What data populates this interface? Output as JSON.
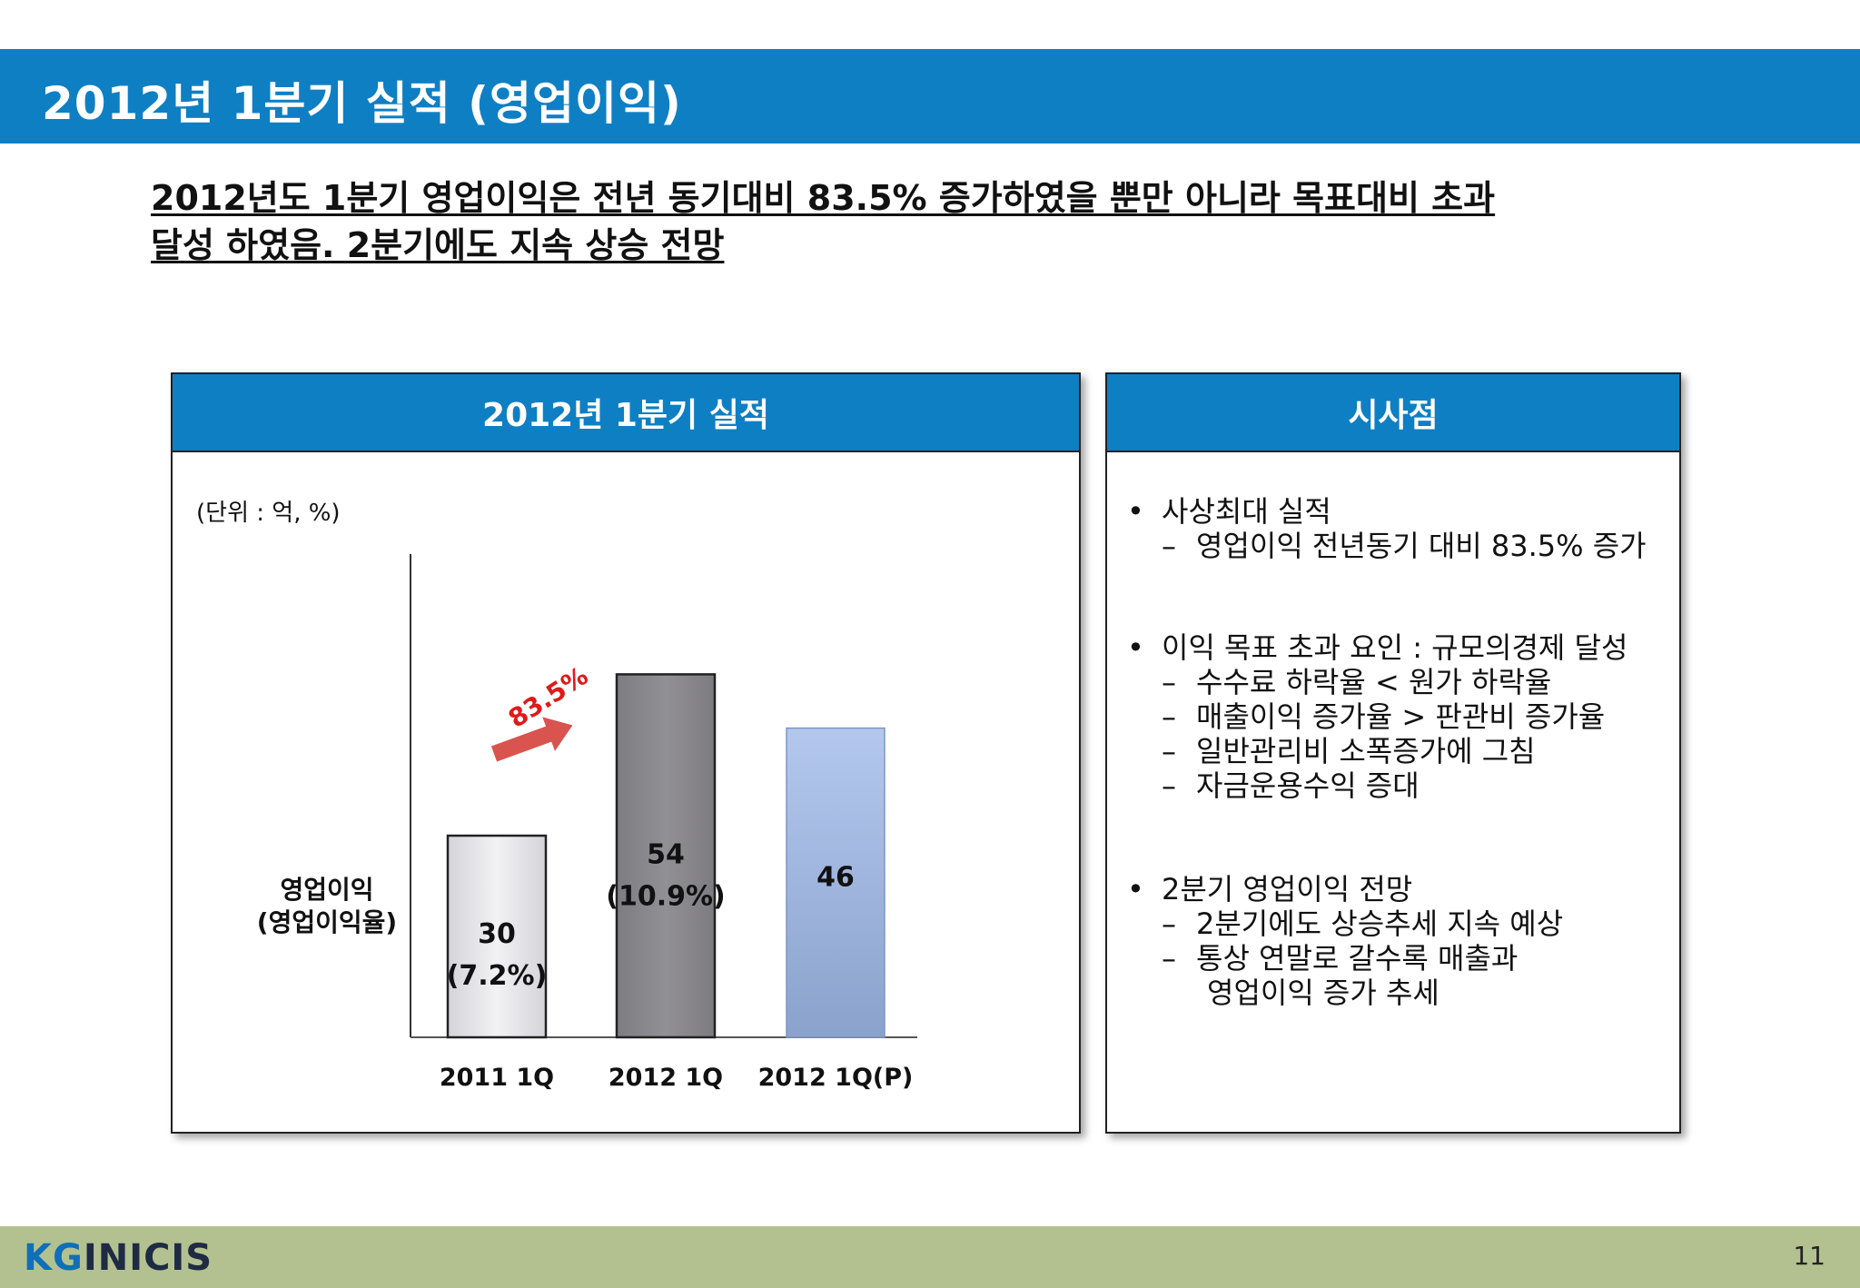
{
  "header": {
    "title": "2012년 1분기 실적 (영업이익)"
  },
  "headline": {
    "line1": "2012년도 1분기 영업이익은 전년 동기대비 83.5% 증가하였을 뿐만 아니라 목표대비 초과",
    "line2": "달성 하였음. 2분기에도 지속 상승 전망"
  },
  "left_panel": {
    "title": "2012년 1분기 실적",
    "unit": "(단위 : 억, %)",
    "row_label_1": "영업이익",
    "row_label_2": "(영업이익율)"
  },
  "chart_data": {
    "type": "bar",
    "categories": [
      "2011 1Q",
      "2012 1Q",
      "2012 1Q(P)"
    ],
    "values": [
      30,
      54,
      46
    ],
    "value_labels": [
      "30",
      "54",
      "46"
    ],
    "rate_labels": [
      "(7.2%)",
      "(10.9%)",
      ""
    ],
    "growth_annotation": "83.5%",
    "colors": [
      "#e8e8ec",
      "#8a898c",
      "#9fb6e0"
    ],
    "annotation_color": "#e01919",
    "arrow_color": "#d9534f"
  },
  "right_panel": {
    "title": "시사점",
    "groups": [
      {
        "bullet": "사상최대 실적",
        "items": [
          "영업이익 전년동기 대비 83.5% 증가"
        ]
      },
      {
        "bullet": "이익 목표 초과 요인 : 규모의경제 달성",
        "items": [
          "수수료 하락율 < 원가 하락율",
          "매출이익 증가율 > 판관비 증가율",
          "일반관리비 소폭증가에 그침",
          "자금운용수익 증대"
        ]
      },
      {
        "bullet": "2분기 영업이익 전망",
        "items": [
          "2분기에도 상승추세 지속 예상",
          "통상 연말로 갈수록 매출과"
        ],
        "continuation": "영업이익 증가 추세"
      }
    ],
    "bullet_symbol": "•",
    "dash_symbol": "–"
  },
  "footer": {
    "logo_kg": "KG",
    "logo_rest": "INICIS",
    "page": "11"
  }
}
